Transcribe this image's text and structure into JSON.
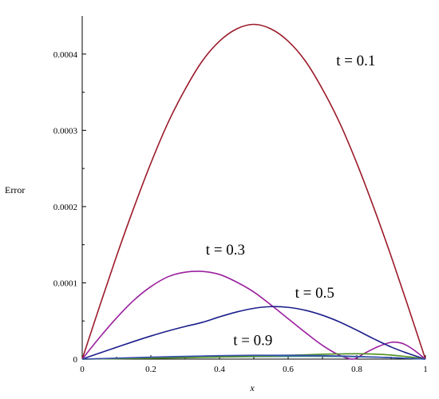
{
  "chart_data": {
    "type": "line",
    "title": "",
    "xlabel": "x",
    "ylabel": "Error",
    "xlim": [
      0,
      1
    ],
    "ylim": [
      0,
      0.00045
    ],
    "grid": false,
    "x_ticks": [
      {
        "value": 0,
        "label": "0"
      },
      {
        "value": 0.2,
        "label": "0.2"
      },
      {
        "value": 0.4,
        "label": "0.4"
      },
      {
        "value": 0.6,
        "label": "0.6"
      },
      {
        "value": 0.8,
        "label": "0.8"
      },
      {
        "value": 1,
        "label": "1"
      }
    ],
    "y_ticks": [
      {
        "value": 0,
        "label": "0"
      },
      {
        "value": 0.0001,
        "label": "0.0001"
      },
      {
        "value": 0.0002,
        "label": "0.0002"
      },
      {
        "value": 0.0003,
        "label": "0.0003"
      },
      {
        "value": 0.0004,
        "label": "0.0004"
      }
    ],
    "series": [
      {
        "name": "t = 0.1",
        "color": "#9b1b2a",
        "x": [
          0,
          0.05,
          0.1,
          0.15,
          0.2,
          0.25,
          0.3,
          0.35,
          0.4,
          0.45,
          0.5,
          0.55,
          0.6,
          0.65,
          0.7,
          0.75,
          0.8,
          0.85,
          0.9,
          0.95,
          1
        ],
        "y": [
          0,
          6.83e-05,
          0.000135,
          0.000198,
          0.000257,
          0.00031,
          0.000354,
          0.000391,
          0.000417,
          0.000433,
          0.000439,
          0.000433,
          0.000417,
          0.000391,
          0.000354,
          0.00031,
          0.000257,
          0.000198,
          0.000135,
          6.83e-05,
          0
        ],
        "label_at": [
          0.74,
          0.000385
        ]
      },
      {
        "name": "t = 0.3",
        "color": "#9a1f9e",
        "x": [
          0,
          0.05,
          0.1,
          0.15,
          0.2,
          0.25,
          0.3,
          0.35,
          0.4,
          0.45,
          0.5,
          0.55,
          0.6,
          0.65,
          0.7,
          0.75,
          0.79,
          0.82,
          0.86,
          0.9,
          0.93,
          0.96,
          1
        ],
        "y": [
          0,
          2.8e-05,
          5.4e-05,
          7.7e-05,
          9.5e-05,
          0.000108,
          0.000114,
          0.000115,
          0.000111,
          0.000101,
          8.8e-05,
          7.1e-05,
          5.3e-05,
          3.5e-05,
          1.8e-05,
          5e-06,
          0,
          7e-06,
          1.6e-05,
          2.2e-05,
          2.1e-05,
          1.4e-05,
          0
        ],
        "label_at": [
          0.36,
          0.000137
        ]
      },
      {
        "name": "t = 0.5",
        "color": "#1c1f8c",
        "x": [
          0,
          0.05,
          0.1,
          0.15,
          0.2,
          0.25,
          0.3,
          0.35,
          0.4,
          0.45,
          0.5,
          0.55,
          0.6,
          0.65,
          0.7,
          0.75,
          0.8,
          0.85,
          0.9,
          0.95,
          1
        ],
        "y": [
          0,
          7.8e-06,
          1.55e-05,
          2.31e-05,
          3.03e-05,
          3.69e-05,
          4.28e-05,
          4.82e-05,
          5.54e-05,
          6.18e-05,
          6.66e-05,
          6.88e-05,
          6.79e-05,
          6.4e-05,
          5.75e-05,
          4.87e-05,
          3.79e-05,
          2.65e-05,
          1.59e-05,
          7.3e-06,
          0
        ],
        "label_at": [
          0.62,
          8.06e-05
        ]
      },
      {
        "name": "",
        "color": "#2e7d7d",
        "x": [
          0,
          0.1,
          0.2,
          0.3,
          0.4,
          0.5,
          0.6,
          0.7,
          0.8,
          0.9,
          1
        ],
        "y": [
          0,
          8e-07,
          1.5e-06,
          2.2e-06,
          2.8e-06,
          3.3e-06,
          3.6e-06,
          3.6e-06,
          3.1e-06,
          1.9e-06,
          0
        ]
      },
      {
        "name": "t = 0.9",
        "color": "#4f8f1e",
        "x": [
          0,
          0.1,
          0.2,
          0.3,
          0.4,
          0.5,
          0.6,
          0.7,
          0.75,
          0.8,
          0.85,
          0.9,
          0.95,
          1
        ],
        "y": [
          0,
          5e-07,
          1.1e-06,
          1.9e-06,
          2.8e-06,
          3.8e-06,
          5e-06,
          6.3e-06,
          6.8e-06,
          7e-06,
          6.6e-06,
          5.3e-06,
          3.1e-06,
          0
        ]
      },
      {
        "name": "",
        "color": "#3a4fae",
        "x": [
          0,
          0.1,
          0.2,
          0.3,
          0.4,
          0.5,
          0.6,
          0.7,
          0.8,
          0.9,
          1
        ],
        "y": [
          0,
          1.2e-06,
          2.5e-06,
          3.6e-06,
          4.5e-06,
          5e-06,
          5e-06,
          4.5e-06,
          3.5e-06,
          1.9e-06,
          0
        ]
      }
    ],
    "t09_label_at": [
      0.44,
      1.85e-05
    ]
  }
}
